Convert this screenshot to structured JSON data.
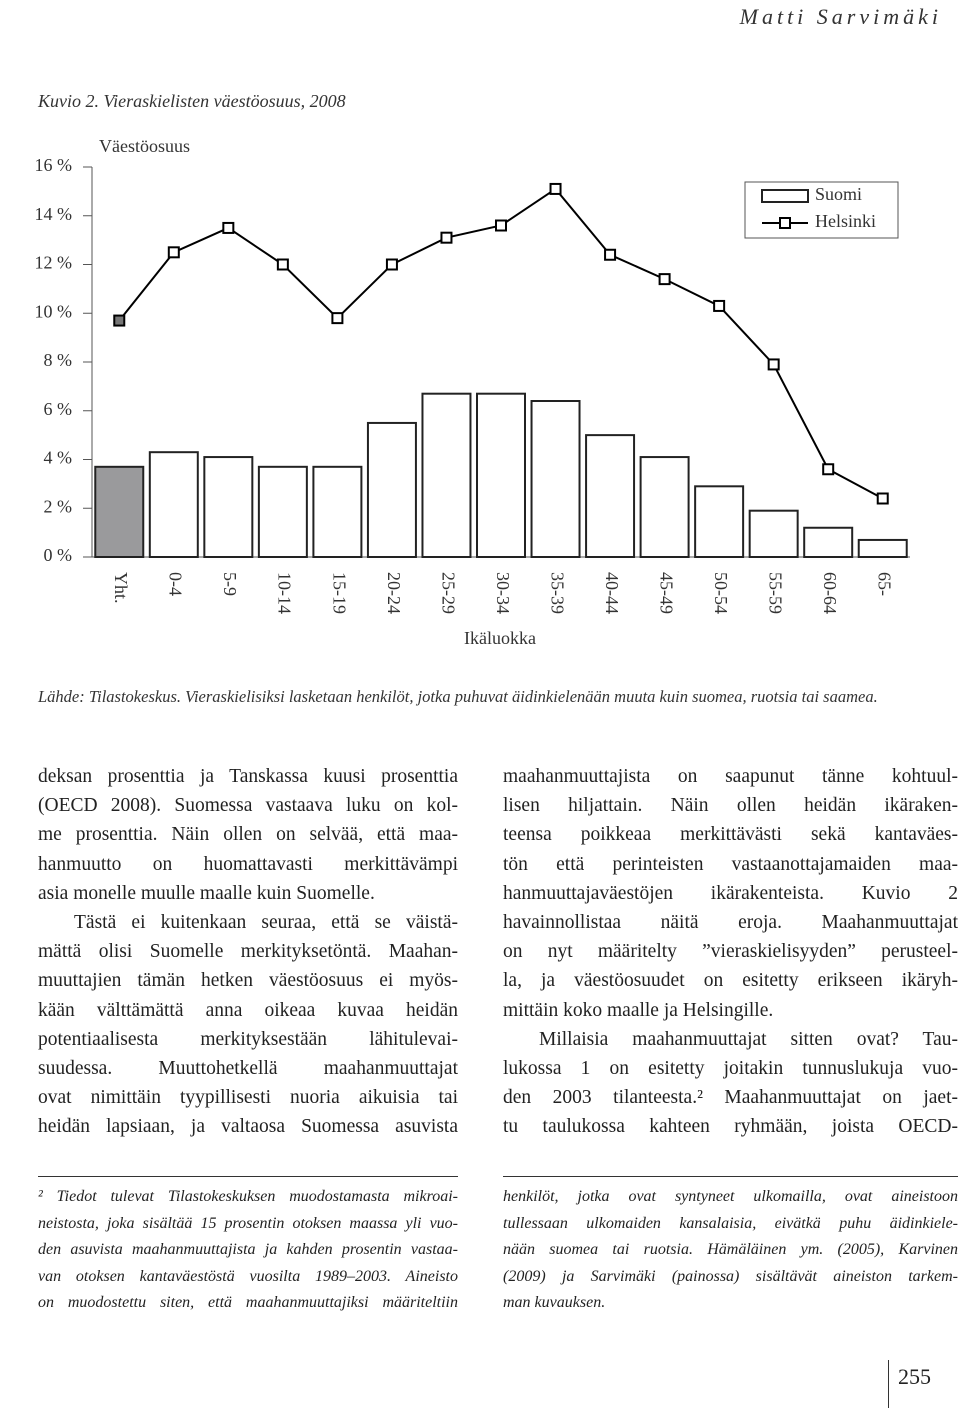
{
  "header": {
    "author": "Matti Sarvimäki"
  },
  "chart_data": {
    "type": "bar",
    "title": "Kuvio 2. Vieraskielisten väestöosuus, 2008",
    "y_label": "Väestöosuus",
    "x_label": "Ikäluokka",
    "source": "Lähde: Tilastokeskus. Vieraskielisiksi lasketaan henkilöt, jotka puhuvat äidinkielenään muuta kuin suomea, ruotsia tai saamea.",
    "categories": [
      "Yht.",
      "0-4",
      "5-9",
      "10-14",
      "15-19",
      "20-24",
      "25-29",
      "30-34",
      "35-39",
      "40-44",
      "45-49",
      "50-54",
      "55-59",
      "60-64",
      "65-"
    ],
    "series": [
      {
        "name": "Suomi",
        "type": "bar",
        "color": "#ffffff",
        "colors": [
          "#9a9a9c",
          "#ffffff",
          "#ffffff",
          "#ffffff",
          "#ffffff",
          "#ffffff",
          "#ffffff",
          "#ffffff",
          "#ffffff",
          "#ffffff",
          "#ffffff",
          "#ffffff",
          "#ffffff",
          "#ffffff",
          "#ffffff"
        ],
        "values": [
          3.7,
          4.3,
          4.1,
          3.7,
          3.7,
          5.5,
          6.7,
          6.7,
          6.4,
          5.0,
          4.1,
          2.9,
          1.9,
          1.2,
          0.7
        ]
      },
      {
        "name": "Helsinki",
        "type": "line",
        "color": "#000000",
        "values": [
          9.7,
          12.5,
          13.5,
          12.0,
          9.8,
          12.0,
          13.1,
          13.6,
          15.1,
          12.4,
          11.4,
          10.3,
          7.9,
          3.6,
          2.4
        ]
      }
    ],
    "ylim": [
      0,
      16
    ],
    "yticks": [
      {
        "value": 0,
        "label": "0 %"
      },
      {
        "value": 2,
        "label": "2 %"
      },
      {
        "value": 4,
        "label": "4 %"
      },
      {
        "value": 6,
        "label": "6 %"
      },
      {
        "value": 8,
        "label": "8 %"
      },
      {
        "value": 10,
        "label": "10 %"
      },
      {
        "value": 12,
        "label": "12 %"
      },
      {
        "value": 14,
        "label": "14 %"
      },
      {
        "value": 16,
        "label": "16 %"
      }
    ],
    "grid": false,
    "legend": "top-right"
  },
  "columns": [
    {
      "paragraphs": [
        {
          "lines": [
            "deksan prosenttia ja Tanskassa kuusi prosenttia",
            "(OECD 2008). Suomessa vastaava luku on kol-",
            "me prosenttia. Näin ollen on selvää, että maa-",
            "hanmuutto on huomattavasti merkittävämpi",
            "asia monelle muulle maalle kuin Suomelle."
          ]
        },
        {
          "lines": [
            "Tästä ei kuitenkaan seuraa, että se väistä-",
            "mättä olisi Suomelle merkityksetöntä. Maahan-",
            "muuttajien tämän hetken väestöosuus ei myös-",
            "kään välttämättä anna oikeaa kuvaa heidän",
            "potentiaalisesta merkityksestään lähitulevai-",
            "suudessa. Muuttohetkellä maahanmuuttajat",
            "ovat nimittäin tyypillisesti nuoria aikuisia tai",
            "heidän lapsiaan, ja valtaosa Suomessa asuvista"
          ]
        }
      ]
    },
    {
      "paragraphs": [
        {
          "lines": [
            "maahanmuuttajista on saapunut tänne kohtuul-",
            "lisen hiljattain. Näin ollen heidän ikäraken-",
            "teensa poikkeaa merkittävästi sekä kantaväes-",
            "tön että perinteisten vastaanottajamaiden maa-",
            "hanmuuttajaväestöjen ikärakenteista. Kuvio 2",
            "havainnollistaa näitä eroja. Maahanmuuttajat",
            "on nyt määritelty ”vieraskielisyyden” perusteel-",
            "la, ja väestöosuudet on esitetty erikseen ikäryh-",
            "mittäin koko maalle ja Helsingille."
          ]
        },
        {
          "lines": [
            "Millaisia maahanmuuttajat sitten ovat? Tau-",
            "lukossa 1 on esitetty joitakin tunnuslukuja vuo-",
            "den 2003 tilanteesta.² Maahanmuuttajat on jaet-",
            "tu taulukossa kahteen ryhmään, joista OECD-"
          ]
        }
      ]
    }
  ],
  "footnotes": [
    {
      "lines": [
        "² Tiedot tulevat Tilastokeskuksen muodostamasta mikroai-",
        "neistosta, joka sisältää 15 prosentin otoksen maassa yli vuo-",
        "den asuvista maahanmuuttajista ja kahden prosentin vastaa-",
        "van otoksen kantaväestöstä vuosilta 1989–2003. Aineisto",
        "on muodostettu siten, että maahanmuuttajiksi määriteltiin"
      ]
    },
    {
      "lines": [
        "henkilöt, jotka ovat syntyneet ulkomailla, ovat aineistoon",
        "tullessaan ulkomaiden kansalaisia, eivätkä puhu äidinkiele-",
        "nään suomea tai ruotsia. Hämäläinen ym. (2005), Karvinen",
        "(2009) ja Sarvimäki (painossa) sisältävät aineiston tarkem-",
        "man kuvauksen."
      ]
    }
  ],
  "page_number": "255"
}
